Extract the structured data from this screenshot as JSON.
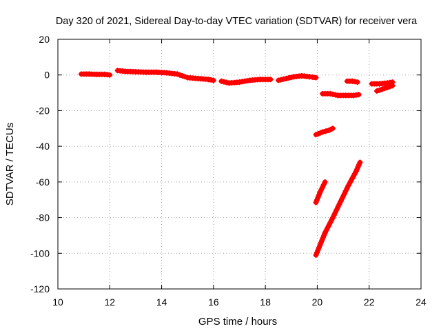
{
  "chart_data": {
    "type": "scatter",
    "title": "Day 320 of 2021, Sidereal Day-to-day VTEC variation (SDTVAR) for receiver vera",
    "xlabel": "GPS time / hours",
    "ylabel": "SDTVAR / TECUs",
    "xlim": [
      10,
      24
    ],
    "ylim": [
      -120,
      20
    ],
    "x_ticks": [
      10,
      12,
      14,
      16,
      18,
      20,
      22,
      24
    ],
    "y_ticks": [
      20,
      0,
      -20,
      -40,
      -60,
      -80,
      -100,
      -120
    ],
    "x_tick_labels": [
      "10",
      "12",
      "14",
      "16",
      "18",
      "20",
      "22",
      "24"
    ],
    "y_tick_labels": [
      "20",
      "0",
      "-20",
      "-40",
      "-60",
      "-80",
      "-100",
      "-120"
    ],
    "grid": true,
    "marker": "plus",
    "color": "#ff0000",
    "series": [
      {
        "segments": [
          {
            "x": [
              10.9,
              11.2,
              11.5,
              11.8,
              12.0
            ],
            "y": [
              0.5,
              0.5,
              0.3,
              0.3,
              0.0
            ]
          },
          {
            "x": [
              12.3,
              12.6,
              13.0,
              13.4,
              13.8,
              14.2,
              14.6,
              14.9
            ],
            "y": [
              2.5,
              2.0,
              1.8,
              1.5,
              1.5,
              1.2,
              0.5,
              -1.0
            ]
          },
          {
            "x": [
              15.0,
              15.4,
              15.8,
              16.0
            ],
            "y": [
              -1.5,
              -2.0,
              -2.5,
              -3.0
            ]
          },
          {
            "x": [
              16.3,
              16.6,
              17.0,
              17.4,
              17.8,
              18.2
            ],
            "y": [
              -3.5,
              -4.5,
              -4.0,
              -3.0,
              -2.5,
              -2.5
            ]
          },
          {
            "x": [
              18.5,
              18.8,
              19.1,
              19.4,
              19.7,
              19.95
            ],
            "y": [
              -3.0,
              -2.0,
              -1.0,
              -0.5,
              -1.0,
              -1.5
            ]
          },
          {
            "x": [
              20.2,
              20.5,
              20.8,
              21.1,
              21.4,
              21.6
            ],
            "y": [
              -10.5,
              -10.5,
              -11.5,
              -11.5,
              -11.5,
              -11.0
            ]
          },
          {
            "x": [
              21.15,
              21.35,
              21.55
            ],
            "y": [
              -3.5,
              -3.5,
              -4.0
            ]
          },
          {
            "x": [
              22.1,
              22.4,
              22.7,
              22.9
            ],
            "y": [
              -5.0,
              -5.0,
              -4.5,
              -4.0
            ]
          },
          {
            "x": [
              22.3,
              22.5,
              22.7,
              22.9
            ],
            "y": [
              -9.0,
              -8.0,
              -7.0,
              -6.0
            ]
          },
          {
            "x": [
              19.95,
              20.2,
              20.45,
              20.6
            ],
            "y": [
              -33.5,
              -32.0,
              -31.0,
              -30.0
            ]
          },
          {
            "x": [
              19.95,
              20.1,
              20.3
            ],
            "y": [
              -71.5,
              -66.0,
              -60.0
            ]
          },
          {
            "x": [
              19.95,
              20.3,
              20.6,
              20.9,
              21.2,
              21.5,
              21.65
            ],
            "y": [
              -101.0,
              -88.5,
              -80.0,
              -71.0,
              -62.0,
              -54.0,
              -49.0
            ]
          }
        ]
      }
    ]
  }
}
